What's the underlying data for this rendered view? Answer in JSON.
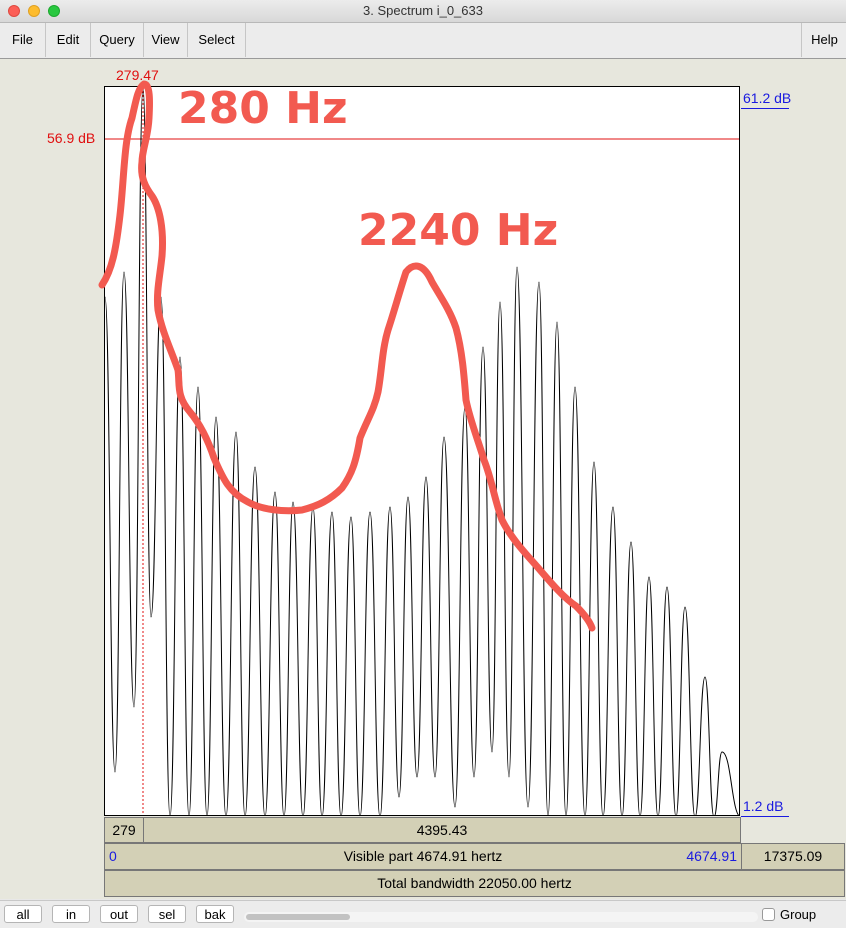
{
  "window": {
    "title": "3. Spectrum i_0_633"
  },
  "menu": {
    "file": "File",
    "edit": "Edit",
    "query": "Query",
    "view": "View",
    "select": "Select",
    "help": "Help"
  },
  "plot": {
    "cursor_freq_label": "279.47",
    "cursor_db_label": "56.9 dB",
    "top_db_label": "61.2 dB",
    "bottom_db_label": "1.2 dB"
  },
  "annotations": {
    "first_peak": "280 Hz",
    "second_peak": "2240 Hz"
  },
  "info_bars": {
    "cursor_left": "279",
    "cursor_right": "4395.43",
    "visible_start": "0",
    "visible_text": "Visible part 4674.91 hertz",
    "visible_end": "4674.91",
    "right_total": "17375.09",
    "total_text": "Total bandwidth 22050.00 hertz"
  },
  "bottom": {
    "all": "all",
    "in": "in",
    "out": "out",
    "sel": "sel",
    "bak": "bak",
    "group": "Group"
  },
  "colors": {
    "cursor": "#e01010",
    "axis_label_blue": "#1a1ae0",
    "annotation": "#f25a50"
  }
}
